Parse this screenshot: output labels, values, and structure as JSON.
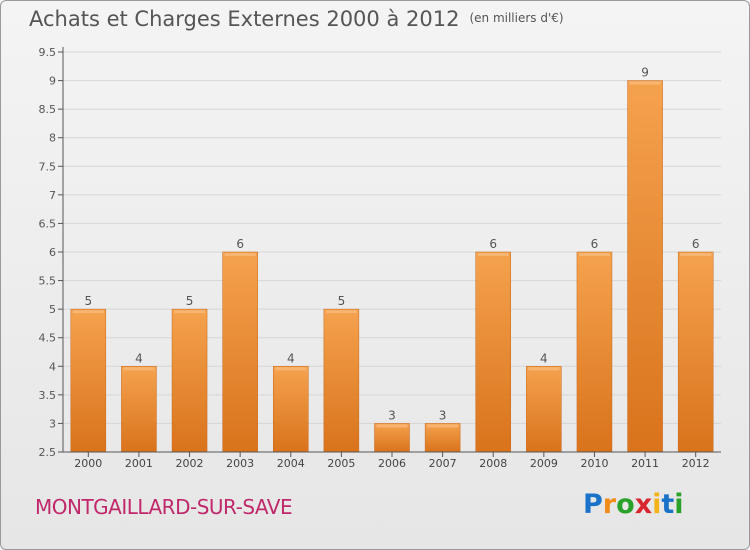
{
  "title": "Achats et Charges Externes 2000 à 2012",
  "unit": "(en milliers d'€)",
  "commune": "MONTGAILLARD-SUR-SAVE",
  "logo": {
    "letters": [
      "P",
      "r",
      "o",
      "x",
      "i",
      "t",
      "i"
    ],
    "colors": [
      "#1a73c9",
      "#f08c1a",
      "#2aa22a",
      "#d8262e",
      "#f2b41a",
      "#1a73c9",
      "#2aa22a"
    ]
  },
  "colors": {
    "bar": "#ef8f35",
    "axis": "#555555",
    "grid": "#d6d6d6"
  },
  "chart_data": {
    "type": "bar",
    "title": "Achats et Charges Externes 2000 à 2012",
    "subtitle": "(en milliers d'€)",
    "categories": [
      "2000",
      "2001",
      "2002",
      "2003",
      "2004",
      "2005",
      "2006",
      "2007",
      "2008",
      "2009",
      "2010",
      "2011",
      "2012"
    ],
    "values": [
      5,
      4,
      5,
      6,
      4,
      5,
      3,
      3,
      6,
      4,
      6,
      9,
      6
    ],
    "data_labels": [
      "5",
      "4",
      "5",
      "6",
      "4",
      "5",
      "3",
      "3",
      "6",
      "4",
      "6",
      "9",
      "6"
    ],
    "ylim": [
      2.5,
      9.5
    ],
    "yticks": [
      2.5,
      3,
      3.5,
      4,
      4.5,
      5,
      5.5,
      6,
      6.5,
      7,
      7.5,
      8,
      8.5,
      9,
      9.5
    ],
    "ytick_labels": [
      "2.5",
      "3",
      "3.5",
      "4",
      "4.5",
      "5",
      "5.5",
      "6",
      "6.5",
      "7",
      "7.5",
      "8",
      "8.5",
      "9",
      "9.5"
    ],
    "grid": true,
    "legend": false
  }
}
